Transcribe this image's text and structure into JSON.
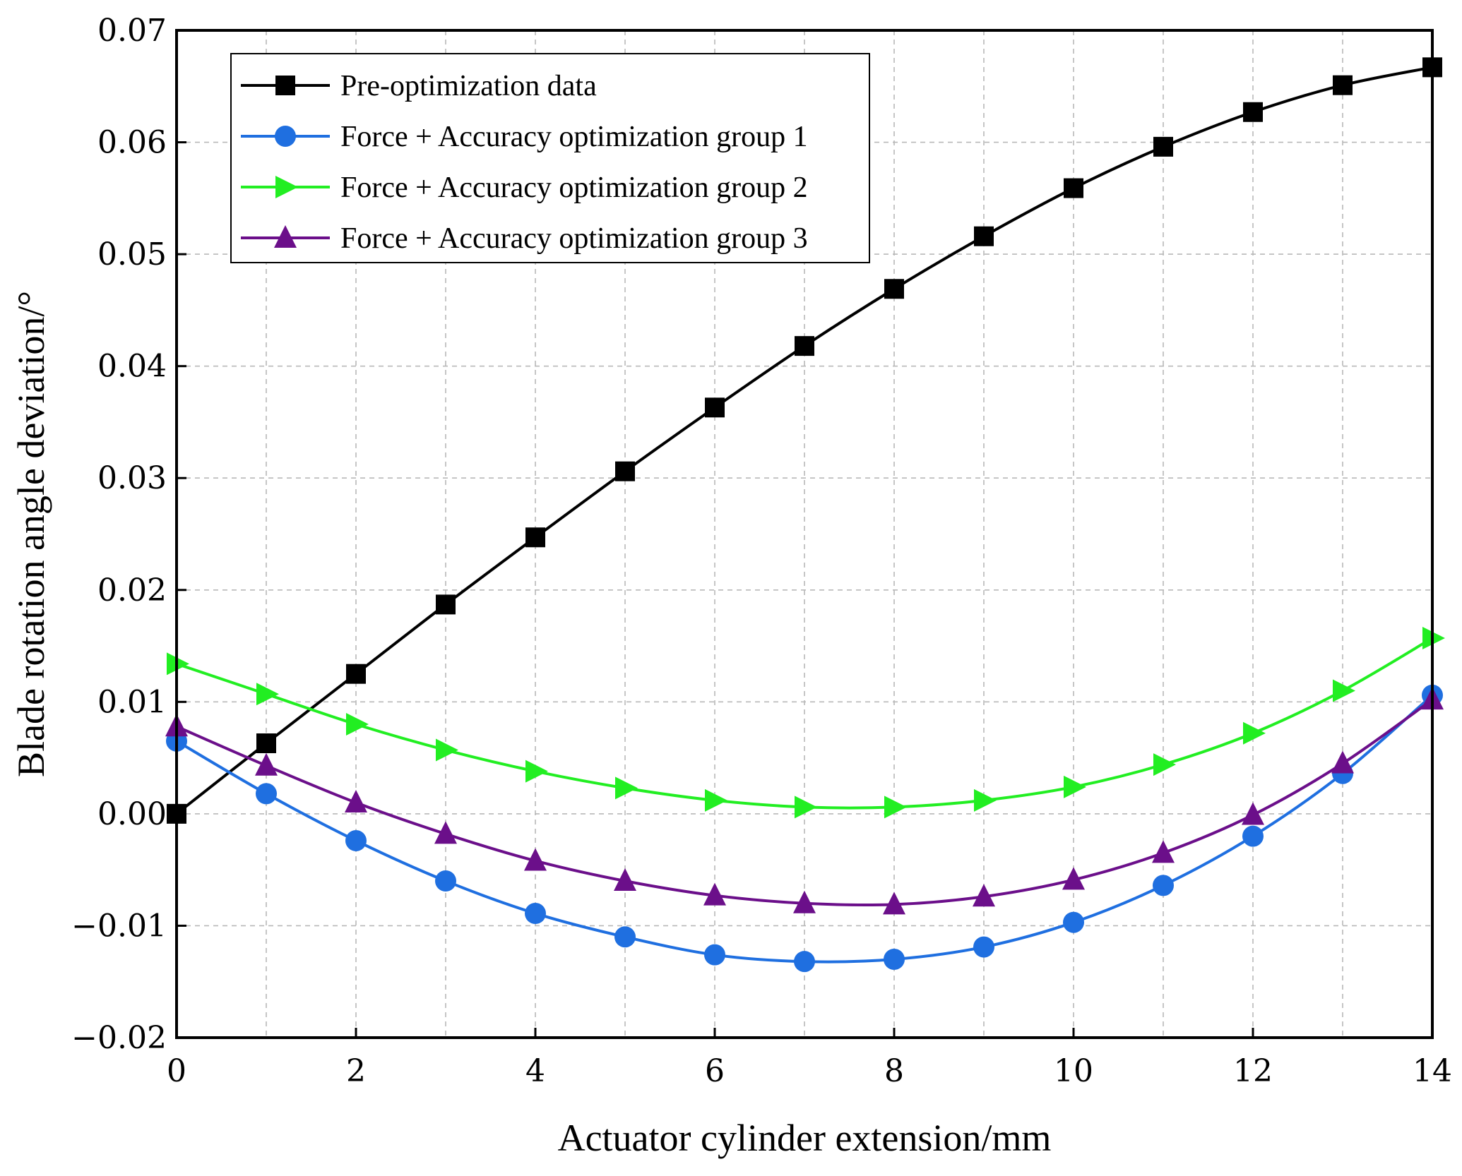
{
  "chart_data": {
    "type": "line",
    "title": "",
    "xlabel": "Actuator cylinder extension/mm",
    "ylabel": "Blade rotation angle deviation/°",
    "xlim": [
      0,
      14
    ],
    "ylim": [
      -0.02,
      0.07
    ],
    "xticks": [
      0,
      2,
      4,
      6,
      8,
      10,
      12,
      14
    ],
    "xtick_labels": [
      "0",
      "2",
      "4",
      "6",
      "8",
      "10",
      "12",
      "14"
    ],
    "yticks": [
      -0.02,
      -0.01,
      0.0,
      0.01,
      0.02,
      0.03,
      0.04,
      0.05,
      0.06,
      0.07
    ],
    "ytick_labels": [
      "−0.02",
      "−0.01",
      "0.00",
      "0.01",
      "0.02",
      "0.03",
      "0.04",
      "0.05",
      "0.06",
      "0.07"
    ],
    "grid": true,
    "legend_position": "top-left",
    "x": [
      0,
      1,
      2,
      3,
      4,
      5,
      6,
      7,
      8,
      9,
      10,
      11,
      12,
      13,
      14
    ],
    "series": [
      {
        "name": "Pre-optimization data",
        "color": "#000000",
        "marker": "square",
        "values": [
          0.0,
          0.0063,
          0.0125,
          0.0187,
          0.0247,
          0.0306,
          0.0363,
          0.0418,
          0.0469,
          0.0516,
          0.0559,
          0.0596,
          0.0627,
          0.0651,
          0.0667
        ]
      },
      {
        "name": "Force + Accuracy optimization group 1",
        "color": "#1f6fe0",
        "marker": "circle",
        "values": [
          0.0065,
          0.0018,
          -0.0024,
          -0.006,
          -0.0089,
          -0.011,
          -0.0126,
          -0.0132,
          -0.013,
          -0.0119,
          -0.0097,
          -0.0064,
          -0.002,
          0.0036,
          0.0106
        ]
      },
      {
        "name": "Force + Accuracy optimization group 2",
        "color": "#22ee22",
        "marker": "triangle-right",
        "values": [
          0.0134,
          0.0107,
          0.008,
          0.0057,
          0.0038,
          0.0023,
          0.0012,
          0.0006,
          0.0006,
          0.0012,
          0.0024,
          0.0044,
          0.0072,
          0.011,
          0.0157
        ]
      },
      {
        "name": "Force + Accuracy optimization group 3",
        "color": "#6b0f8a",
        "marker": "triangle-up",
        "values": [
          0.0078,
          0.0043,
          0.001,
          -0.0018,
          -0.0042,
          -0.006,
          -0.0073,
          -0.008,
          -0.0081,
          -0.0074,
          -0.0059,
          -0.0035,
          -0.0001,
          0.0045,
          0.0102
        ]
      }
    ]
  }
}
